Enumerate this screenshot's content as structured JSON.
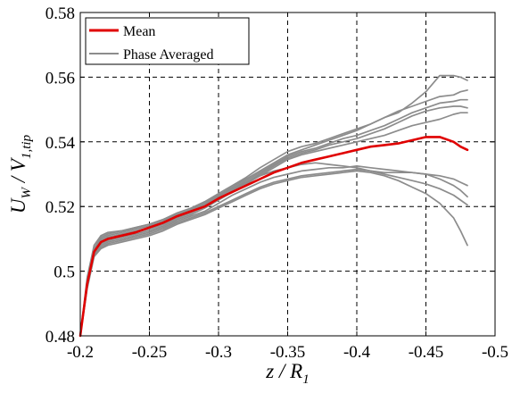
{
  "chart_data": {
    "type": "line",
    "title": "",
    "xlabel": {
      "main": "z / R",
      "sub": "1"
    },
    "ylabel": {
      "main": "U",
      "sub1": "W",
      "mid": " / V",
      "sub2": "1,tip"
    },
    "xlim": [
      -0.2,
      -0.5
    ],
    "ylim": [
      0.48,
      0.58
    ],
    "x_reversed": true,
    "grid": true,
    "grid_style": "dashed",
    "legend_position": "top-left",
    "xticks": [
      -0.2,
      -0.25,
      -0.3,
      -0.35,
      -0.4,
      -0.45,
      -0.5
    ],
    "xtick_labels": [
      "-0.2",
      "-0.25",
      "-0.3",
      "-0.35",
      "-0.4",
      "-0.45",
      "-0.5"
    ],
    "yticks": [
      0.48,
      0.5,
      0.52,
      0.54,
      0.56,
      0.58
    ],
    "ytick_labels": [
      "0.48",
      "0.5",
      "0.52",
      "0.54",
      "0.56",
      "0.58"
    ],
    "colors": {
      "mean": "#e00000",
      "phase": "#8c8c8c",
      "grid": "#000000"
    },
    "series": [
      {
        "name": "Mean",
        "role": "mean",
        "x": [
          -0.2,
          -0.205,
          -0.21,
          -0.215,
          -0.22,
          -0.23,
          -0.24,
          -0.25,
          -0.26,
          -0.27,
          -0.28,
          -0.29,
          -0.3,
          -0.31,
          -0.32,
          -0.33,
          -0.34,
          -0.35,
          -0.36,
          -0.37,
          -0.38,
          -0.39,
          -0.4,
          -0.41,
          -0.42,
          -0.43,
          -0.44,
          -0.45,
          -0.46,
          -0.47,
          -0.475,
          -0.48
        ],
        "y": [
          0.48,
          0.496,
          0.506,
          0.509,
          0.51,
          0.511,
          0.512,
          0.5135,
          0.515,
          0.517,
          0.5185,
          0.52,
          0.5225,
          0.5245,
          0.5265,
          0.5285,
          0.5305,
          0.532,
          0.5335,
          0.5345,
          0.5355,
          0.5365,
          0.5375,
          0.5385,
          0.539,
          0.5395,
          0.5405,
          0.5415,
          0.5415,
          0.54,
          0.5385,
          0.5375
        ]
      },
      {
        "name": "Phase Averaged",
        "role": "phase",
        "x": [
          -0.2,
          -0.205,
          -0.21,
          -0.215,
          -0.22,
          -0.23,
          -0.24,
          -0.25,
          -0.26,
          -0.27,
          -0.28,
          -0.29,
          -0.3,
          -0.31,
          -0.32,
          -0.33,
          -0.34,
          -0.35,
          -0.36,
          -0.37,
          -0.38,
          -0.39,
          -0.4,
          -0.41,
          -0.42,
          -0.43,
          -0.44,
          -0.45,
          -0.46,
          -0.47,
          -0.475,
          -0.48
        ],
        "y": [
          0.48,
          0.498,
          0.508,
          0.511,
          0.512,
          0.5125,
          0.5135,
          0.5145,
          0.516,
          0.518,
          0.5195,
          0.5215,
          0.524,
          0.5265,
          0.529,
          0.532,
          0.5345,
          0.537,
          0.5385,
          0.5395,
          0.541,
          0.5425,
          0.544,
          0.5455,
          0.5475,
          0.549,
          0.552,
          0.5555,
          0.5605,
          0.5605,
          0.56,
          0.559
        ]
      },
      {
        "name": "",
        "role": "phase",
        "x": [
          -0.2,
          -0.205,
          -0.21,
          -0.215,
          -0.22,
          -0.23,
          -0.24,
          -0.25,
          -0.26,
          -0.27,
          -0.28,
          -0.29,
          -0.3,
          -0.31,
          -0.32,
          -0.33,
          -0.34,
          -0.35,
          -0.36,
          -0.37,
          -0.38,
          -0.39,
          -0.4,
          -0.41,
          -0.42,
          -0.43,
          -0.44,
          -0.45,
          -0.46,
          -0.47,
          -0.475,
          -0.48
        ],
        "y": [
          0.48,
          0.497,
          0.507,
          0.51,
          0.511,
          0.512,
          0.513,
          0.514,
          0.5155,
          0.5175,
          0.519,
          0.521,
          0.5235,
          0.526,
          0.5285,
          0.531,
          0.5335,
          0.536,
          0.5375,
          0.539,
          0.5405,
          0.542,
          0.5435,
          0.5455,
          0.5475,
          0.5495,
          0.551,
          0.5525,
          0.554,
          0.5545,
          0.5555,
          0.556
        ]
      },
      {
        "name": "",
        "role": "phase",
        "x": [
          -0.2,
          -0.205,
          -0.21,
          -0.215,
          -0.22,
          -0.23,
          -0.24,
          -0.25,
          -0.26,
          -0.27,
          -0.28,
          -0.29,
          -0.3,
          -0.31,
          -0.32,
          -0.33,
          -0.34,
          -0.35,
          -0.36,
          -0.37,
          -0.38,
          -0.39,
          -0.4,
          -0.41,
          -0.42,
          -0.43,
          -0.44,
          -0.45,
          -0.46,
          -0.47,
          -0.475,
          -0.48
        ],
        "y": [
          0.48,
          0.4965,
          0.5065,
          0.5095,
          0.5105,
          0.5115,
          0.5125,
          0.5135,
          0.515,
          0.517,
          0.5185,
          0.5205,
          0.523,
          0.5255,
          0.528,
          0.5305,
          0.533,
          0.5355,
          0.537,
          0.538,
          0.5395,
          0.541,
          0.542,
          0.5435,
          0.545,
          0.547,
          0.549,
          0.5505,
          0.552,
          0.5525,
          0.553,
          0.553
        ]
      },
      {
        "name": "",
        "role": "phase",
        "x": [
          -0.2,
          -0.205,
          -0.21,
          -0.215,
          -0.22,
          -0.23,
          -0.24,
          -0.25,
          -0.26,
          -0.27,
          -0.28,
          -0.29,
          -0.3,
          -0.31,
          -0.32,
          -0.33,
          -0.34,
          -0.35,
          -0.36,
          -0.37,
          -0.38,
          -0.39,
          -0.4,
          -0.41,
          -0.42,
          -0.43,
          -0.44,
          -0.45,
          -0.46,
          -0.47,
          -0.475,
          -0.48
        ],
        "y": [
          0.48,
          0.496,
          0.506,
          0.509,
          0.51,
          0.511,
          0.512,
          0.513,
          0.5145,
          0.5165,
          0.518,
          0.52,
          0.5225,
          0.525,
          0.5275,
          0.53,
          0.5325,
          0.535,
          0.5365,
          0.5375,
          0.539,
          0.54,
          0.541,
          0.5425,
          0.544,
          0.546,
          0.548,
          0.5495,
          0.5505,
          0.551,
          0.551,
          0.5505
        ]
      },
      {
        "name": "",
        "role": "phase",
        "x": [
          -0.2,
          -0.205,
          -0.21,
          -0.215,
          -0.22,
          -0.23,
          -0.24,
          -0.25,
          -0.26,
          -0.27,
          -0.28,
          -0.29,
          -0.3,
          -0.31,
          -0.32,
          -0.33,
          -0.34,
          -0.35,
          -0.36,
          -0.37,
          -0.38,
          -0.39,
          -0.4,
          -0.41,
          -0.42,
          -0.43,
          -0.44,
          -0.45,
          -0.46,
          -0.47,
          -0.475,
          -0.48
        ],
        "y": [
          0.48,
          0.4955,
          0.5055,
          0.5085,
          0.5095,
          0.5105,
          0.5115,
          0.5125,
          0.514,
          0.516,
          0.5175,
          0.5195,
          0.522,
          0.5245,
          0.527,
          0.5295,
          0.532,
          0.5345,
          0.536,
          0.537,
          0.538,
          0.539,
          0.54,
          0.541,
          0.542,
          0.5435,
          0.545,
          0.546,
          0.547,
          0.5485,
          0.549,
          0.549
        ]
      },
      {
        "name": "",
        "role": "phase",
        "x": [
          -0.2,
          -0.205,
          -0.21,
          -0.215,
          -0.22,
          -0.23,
          -0.24,
          -0.25,
          -0.26,
          -0.27,
          -0.28,
          -0.29,
          -0.3,
          -0.31,
          -0.32,
          -0.33,
          -0.34,
          -0.35,
          -0.36,
          -0.37,
          -0.38,
          -0.39,
          -0.4,
          -0.41,
          -0.42,
          -0.43,
          -0.44,
          -0.45,
          -0.46,
          -0.47,
          -0.475,
          -0.48
        ],
        "y": [
          0.48,
          0.4955,
          0.5055,
          0.508,
          0.509,
          0.51,
          0.511,
          0.512,
          0.5135,
          0.5155,
          0.517,
          0.5185,
          0.521,
          0.5235,
          0.5255,
          0.5275,
          0.529,
          0.53,
          0.531,
          0.5315,
          0.532,
          0.532,
          0.5325,
          0.532,
          0.5315,
          0.531,
          0.5305,
          0.53,
          0.5285,
          0.5265,
          0.525,
          0.523
        ]
      },
      {
        "name": "",
        "role": "phase",
        "x": [
          -0.2,
          -0.205,
          -0.21,
          -0.215,
          -0.22,
          -0.23,
          -0.24,
          -0.25,
          -0.26,
          -0.27,
          -0.28,
          -0.29,
          -0.3,
          -0.31,
          -0.32,
          -0.33,
          -0.34,
          -0.35,
          -0.36,
          -0.37,
          -0.38,
          -0.39,
          -0.4,
          -0.41,
          -0.42,
          -0.43,
          -0.44,
          -0.45,
          -0.46,
          -0.47,
          -0.475,
          -0.48
        ],
        "y": [
          0.48,
          0.495,
          0.505,
          0.5075,
          0.5085,
          0.5095,
          0.5105,
          0.5115,
          0.513,
          0.515,
          0.5165,
          0.518,
          0.52,
          0.522,
          0.524,
          0.526,
          0.5275,
          0.5285,
          0.5295,
          0.53,
          0.5305,
          0.531,
          0.5315,
          0.531,
          0.53,
          0.529,
          0.528,
          0.527,
          0.5255,
          0.5235,
          0.522,
          0.5205
        ]
      },
      {
        "name": "",
        "role": "phase",
        "x": [
          -0.2,
          -0.205,
          -0.21,
          -0.215,
          -0.22,
          -0.23,
          -0.24,
          -0.25,
          -0.26,
          -0.27,
          -0.28,
          -0.29,
          -0.3,
          -0.31,
          -0.32,
          -0.33,
          -0.34,
          -0.35,
          -0.36,
          -0.37,
          -0.38,
          -0.39,
          -0.4,
          -0.41,
          -0.42,
          -0.43,
          -0.44,
          -0.45,
          -0.46,
          -0.47,
          -0.475,
          -0.48
        ],
        "y": [
          0.48,
          0.4945,
          0.5045,
          0.507,
          0.508,
          0.509,
          0.51,
          0.511,
          0.5125,
          0.5145,
          0.516,
          0.5175,
          0.5195,
          0.5215,
          0.5235,
          0.5255,
          0.527,
          0.528,
          0.529,
          0.5295,
          0.53,
          0.5305,
          0.531,
          0.5305,
          0.5295,
          0.528,
          0.526,
          0.524,
          0.521,
          0.5165,
          0.5125,
          0.508
        ]
      },
      {
        "name": "",
        "role": "phase",
        "x": [
          -0.2,
          -0.205,
          -0.21,
          -0.215,
          -0.22,
          -0.23,
          -0.24,
          -0.25,
          -0.26,
          -0.27,
          -0.28,
          -0.29,
          -0.3,
          -0.31,
          -0.32,
          -0.33,
          -0.34,
          -0.35,
          -0.36,
          -0.37,
          -0.38,
          -0.39,
          -0.4,
          -0.41,
          -0.42,
          -0.43,
          -0.44,
          -0.45,
          -0.46,
          -0.47,
          -0.475,
          -0.48
        ],
        "y": [
          0.48,
          0.497,
          0.507,
          0.5105,
          0.5115,
          0.5125,
          0.5135,
          0.5145,
          0.516,
          0.5175,
          0.519,
          0.521,
          0.5235,
          0.5255,
          0.5275,
          0.5295,
          0.531,
          0.532,
          0.533,
          0.5335,
          0.533,
          0.5325,
          0.532,
          0.531,
          0.5305,
          0.5305,
          0.5305,
          0.53,
          0.5295,
          0.5285,
          0.5275,
          0.5265
        ]
      }
    ]
  }
}
